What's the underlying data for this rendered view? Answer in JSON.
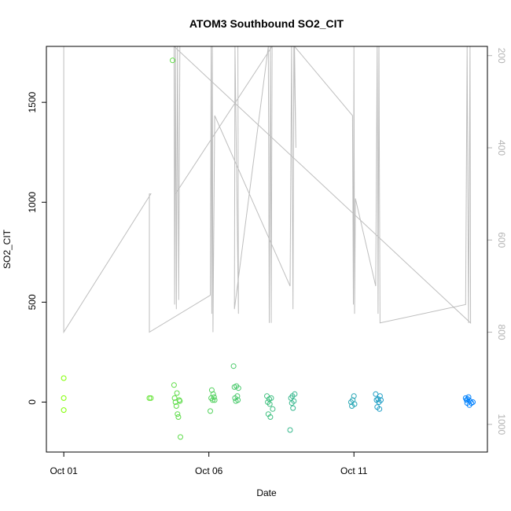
{
  "chart_data": {
    "type": "scatter",
    "title": "ATOM3 Southbound SO2_CIT",
    "xlabel": "Date",
    "ylabel": "SO2_CIT",
    "x_ticks": [
      {
        "day": 1,
        "label": "Oct 01"
      },
      {
        "day": 6,
        "label": "Oct 06"
      },
      {
        "day": 11,
        "label": "Oct 11"
      }
    ],
    "xlim_days": [
      0.4,
      15.6
    ],
    "ylim": [
      -250,
      1780
    ],
    "y_ticks": [
      0,
      500,
      1000,
      1500
    ],
    "y2_axis": {
      "reversed": true,
      "ylim": [
        1060,
        180
      ],
      "ticks": [
        200,
        400,
        600,
        800,
        1000
      ],
      "color": "#b3b3b3"
    },
    "colors": {
      "start": "#80ff00",
      "end": "#0080ff",
      "line": "#bebebe"
    },
    "points": [
      [
        1.0,
        120
      ],
      [
        1.0,
        20
      ],
      [
        1.0,
        -40
      ],
      [
        3.95,
        20
      ],
      [
        4.0,
        20
      ],
      [
        4.75,
        1710
      ],
      [
        4.8,
        85
      ],
      [
        4.82,
        20
      ],
      [
        4.85,
        0
      ],
      [
        4.88,
        -20
      ],
      [
        4.9,
        45
      ],
      [
        4.92,
        -60
      ],
      [
        4.95,
        -75
      ],
      [
        4.98,
        10
      ],
      [
        5.0,
        5
      ],
      [
        5.02,
        -175
      ],
      [
        6.05,
        -45
      ],
      [
        6.08,
        20
      ],
      [
        6.1,
        60
      ],
      [
        6.13,
        10
      ],
      [
        6.15,
        40
      ],
      [
        6.18,
        25
      ],
      [
        6.2,
        10
      ],
      [
        6.85,
        180
      ],
      [
        6.88,
        75
      ],
      [
        6.9,
        20
      ],
      [
        6.93,
        5
      ],
      [
        6.95,
        80
      ],
      [
        6.98,
        30
      ],
      [
        7.0,
        10
      ],
      [
        7.02,
        70
      ],
      [
        8.0,
        30
      ],
      [
        8.03,
        0
      ],
      [
        8.05,
        -60
      ],
      [
        8.08,
        15
      ],
      [
        8.1,
        -10
      ],
      [
        8.12,
        -75
      ],
      [
        8.15,
        20
      ],
      [
        8.2,
        -35
      ],
      [
        8.8,
        -140
      ],
      [
        8.83,
        20
      ],
      [
        8.86,
        -5
      ],
      [
        8.88,
        30
      ],
      [
        8.9,
        -30
      ],
      [
        8.93,
        5
      ],
      [
        8.96,
        40
      ],
      [
        10.9,
        0
      ],
      [
        10.93,
        -20
      ],
      [
        10.96,
        10
      ],
      [
        11.0,
        30
      ],
      [
        11.02,
        -10
      ],
      [
        11.75,
        40
      ],
      [
        11.78,
        10
      ],
      [
        11.8,
        -25
      ],
      [
        11.83,
        15
      ],
      [
        11.86,
        0
      ],
      [
        11.88,
        -35
      ],
      [
        11.9,
        30
      ],
      [
        11.93,
        10
      ],
      [
        14.85,
        20
      ],
      [
        14.88,
        10
      ],
      [
        14.9,
        -5
      ],
      [
        14.92,
        15
      ],
      [
        14.95,
        25
      ],
      [
        14.98,
        -15
      ],
      [
        15.0,
        5
      ],
      [
        15.05,
        -5
      ],
      [
        15.1,
        0
      ]
    ],
    "altitude_profile": [
      [
        1.0,
        180
      ],
      [
        1.0,
        800
      ],
      [
        4.0,
        500
      ],
      [
        3.95,
        500
      ],
      [
        3.95,
        800
      ],
      [
        6.05,
        720
      ],
      [
        6.08,
        180
      ],
      [
        6.1,
        760
      ],
      [
        6.12,
        180
      ],
      [
        6.14,
        800
      ],
      [
        6.2,
        330
      ],
      [
        8.8,
        700
      ],
      [
        8.85,
        180
      ],
      [
        8.9,
        750
      ],
      [
        8.93,
        180
      ],
      [
        9.0,
        400
      ],
      [
        8.95,
        180
      ],
      [
        10.95,
        330
      ],
      [
        10.98,
        740
      ],
      [
        11.0,
        180
      ],
      [
        11.02,
        760
      ],
      [
        11.05,
        510
      ],
      [
        11.75,
        700
      ],
      [
        11.8,
        180
      ],
      [
        11.83,
        760
      ],
      [
        11.86,
        180
      ],
      [
        11.9,
        780
      ],
      [
        14.85,
        740
      ],
      [
        14.9,
        180
      ],
      [
        14.95,
        780
      ],
      [
        15.0,
        180
      ],
      [
        15.02,
        780
      ],
      [
        4.8,
        180
      ],
      [
        4.82,
        740
      ],
      [
        4.85,
        180
      ],
      [
        4.88,
        750
      ],
      [
        4.92,
        180
      ],
      [
        4.96,
        730
      ],
      [
        5.0,
        180
      ],
      [
        7.0,
        180
      ],
      [
        7.02,
        760
      ],
      [
        6.9,
        180
      ],
      [
        6.88,
        750
      ],
      [
        8.05,
        180
      ],
      [
        8.08,
        780
      ],
      [
        8.12,
        180
      ],
      [
        8.15,
        780
      ],
      [
        8.18,
        180
      ],
      [
        4.85,
        500
      ]
    ]
  }
}
